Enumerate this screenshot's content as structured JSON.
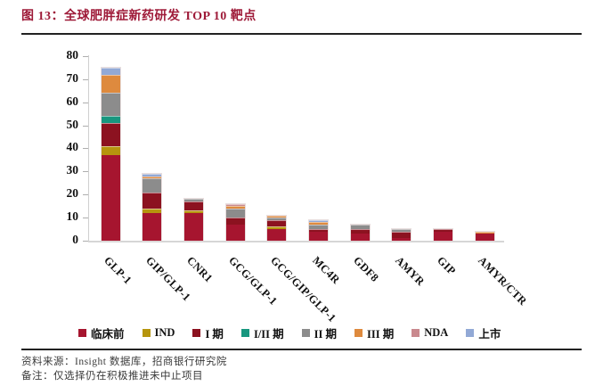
{
  "figure": {
    "title": "图 13：全球肥胖症新药研发 TOP 10 靶点",
    "source_line": "资料来源：Insight 数据库，招商银行研究院",
    "note_line": "备注：仅选择仍在积极推进未中止项目",
    "title_color": "#9E1A38"
  },
  "chart_data": {
    "type": "bar",
    "stacked": true,
    "title": "全球肥胖症新药研发 TOP 10 靶点",
    "xlabel": "",
    "ylabel": "",
    "ylim": [
      0,
      80
    ],
    "yticks": [
      0,
      10,
      20,
      30,
      40,
      50,
      60,
      70,
      80
    ],
    "grid": false,
    "legend_position": "bottom",
    "categories": [
      "GLP-1",
      "GIP/GLP-1",
      "CNR1",
      "GCG/GLP-1",
      "GCG/GIP/GLP-1",
      "MC4R",
      "GDF8",
      "AMYR",
      "GIP",
      "AMYR/CTR"
    ],
    "totals": [
      75,
      29,
      18,
      16,
      11,
      9,
      7,
      5,
      5,
      4
    ],
    "series": [
      {
        "name": "临床前",
        "color": "#A6152F",
        "values": [
          37,
          12,
          12,
          7,
          5,
          4,
          3,
          1,
          4,
          3
        ]
      },
      {
        "name": "IND",
        "color": "#B6950E",
        "values": [
          4,
          2,
          1,
          0,
          1,
          0,
          0,
          0,
          0,
          0
        ]
      },
      {
        "name": "I 期",
        "color": "#8C1220",
        "values": [
          10,
          7,
          4,
          3,
          3,
          1,
          2,
          3,
          1,
          0
        ]
      },
      {
        "name": "I/II 期",
        "color": "#18977F",
        "values": [
          3,
          0,
          0,
          0,
          0,
          0,
          0,
          0,
          0,
          0
        ]
      },
      {
        "name": "II 期",
        "color": "#8C8C8C",
        "values": [
          10,
          6,
          1,
          4,
          1,
          2,
          2,
          1,
          0,
          0
        ]
      },
      {
        "name": "III 期",
        "color": "#DE8A3E",
        "values": [
          8,
          1,
          0,
          1,
          1,
          1,
          0,
          0,
          0,
          1
        ]
      },
      {
        "name": "NDA",
        "color": "#C9898E",
        "values": [
          0,
          0,
          0,
          1,
          0,
          0,
          0,
          0,
          0,
          0
        ]
      },
      {
        "name": "上市",
        "color": "#92A9D6",
        "values": [
          3,
          1,
          0,
          0,
          0,
          1,
          0,
          0,
          0,
          0
        ]
      }
    ]
  }
}
